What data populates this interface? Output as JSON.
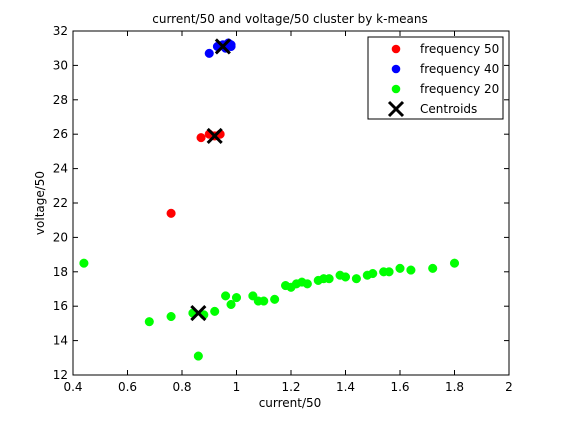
{
  "chart_data": {
    "type": "scatter",
    "title": "current/50 and voltage/50 cluster by k-means",
    "xlabel": "current/50",
    "ylabel": "voltage/50",
    "xlim": [
      0.4,
      2
    ],
    "ylim": [
      12,
      32
    ],
    "xticks": [
      "0.4",
      "0.6",
      "0.8",
      "1",
      "1.2",
      "1.4",
      "1.6",
      "1.8",
      "2"
    ],
    "yticks": [
      "12",
      "14",
      "16",
      "18",
      "20",
      "22",
      "24",
      "26",
      "28",
      "30",
      "32"
    ],
    "grid": false,
    "legend_position": "top-right",
    "series": [
      {
        "name": "frequency 50",
        "color": "#ff0000",
        "marker": "circle",
        "points": [
          [
            0.76,
            21.4
          ],
          [
            0.87,
            25.8
          ],
          [
            0.9,
            26.0
          ],
          [
            0.92,
            25.9
          ],
          [
            0.94,
            26.0
          ]
        ]
      },
      {
        "name": "frequency 40",
        "color": "#0000ff",
        "marker": "circle",
        "points": [
          [
            0.9,
            30.7
          ],
          [
            0.93,
            31.1
          ],
          [
            0.95,
            31.2
          ],
          [
            0.96,
            31.0
          ],
          [
            0.97,
            31.3
          ],
          [
            0.98,
            31.1
          ],
          [
            0.98,
            31.2
          ]
        ]
      },
      {
        "name": "frequency 20",
        "color": "#00ff00",
        "marker": "circle",
        "points": [
          [
            0.44,
            18.5
          ],
          [
            0.68,
            15.1
          ],
          [
            0.76,
            15.4
          ],
          [
            0.84,
            15.6
          ],
          [
            0.86,
            13.1
          ],
          [
            0.88,
            15.5
          ],
          [
            0.92,
            15.7
          ],
          [
            0.96,
            16.6
          ],
          [
            0.98,
            16.1
          ],
          [
            1.0,
            16.5
          ],
          [
            1.06,
            16.6
          ],
          [
            1.08,
            16.3
          ],
          [
            1.1,
            16.3
          ],
          [
            1.14,
            16.4
          ],
          [
            1.18,
            17.2
          ],
          [
            1.2,
            17.1
          ],
          [
            1.22,
            17.3
          ],
          [
            1.24,
            17.4
          ],
          [
            1.26,
            17.3
          ],
          [
            1.3,
            17.5
          ],
          [
            1.32,
            17.6
          ],
          [
            1.34,
            17.6
          ],
          [
            1.38,
            17.8
          ],
          [
            1.4,
            17.7
          ],
          [
            1.44,
            17.6
          ],
          [
            1.48,
            17.8
          ],
          [
            1.5,
            17.9
          ],
          [
            1.54,
            18.0
          ],
          [
            1.56,
            18.0
          ],
          [
            1.6,
            18.2
          ],
          [
            1.64,
            18.1
          ],
          [
            1.72,
            18.2
          ],
          [
            1.8,
            18.5
          ]
        ]
      },
      {
        "name": "Centroids",
        "color": "#000000",
        "marker": "x",
        "points": [
          [
            0.95,
            31.1
          ],
          [
            0.92,
            25.9
          ],
          [
            0.86,
            15.6
          ]
        ]
      }
    ]
  }
}
